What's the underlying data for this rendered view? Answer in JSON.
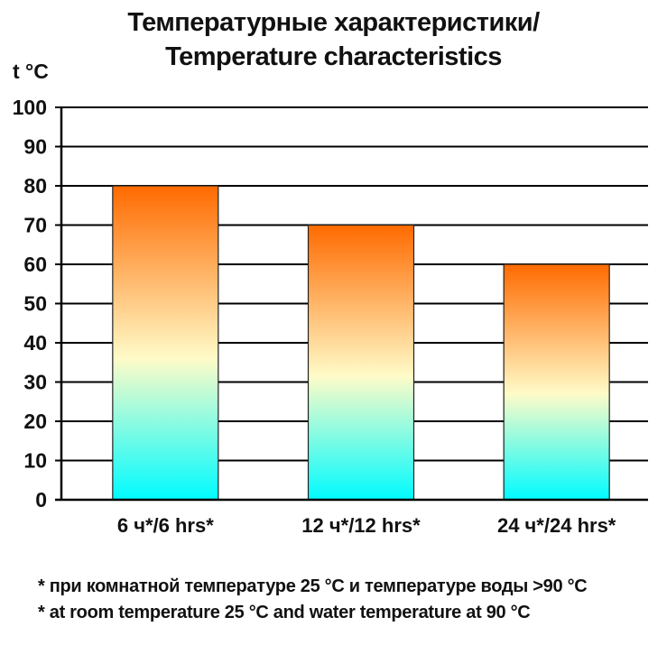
{
  "title_line1": "Температурные характеристики/",
  "title_line2": "Temperature characteristics",
  "colors": {
    "bar_top": "#ff6a00",
    "bar_mid": "#fffbc8",
    "bar_bottom": "#00fbff",
    "grid": "#000000"
  },
  "chart_data": {
    "type": "bar",
    "title": "Температурные характеристики/ Temperature characteristics",
    "ylabel": "t °C",
    "xlabel": "",
    "ylim": [
      0,
      100
    ],
    "yticks": [
      0,
      10,
      20,
      30,
      40,
      50,
      60,
      70,
      80,
      90,
      100
    ],
    "grid": true,
    "categories": [
      "6 ч*/6 hrs*",
      "12 ч*/12 hrs*",
      "24 ч*/24 hrs*"
    ],
    "values": [
      80,
      70,
      60
    ]
  },
  "notes": [
    "* при комнатной температуре 25 °С и температуре воды >90 °С",
    "* at room temperature 25 °С and water temperature at 90 °С"
  ]
}
